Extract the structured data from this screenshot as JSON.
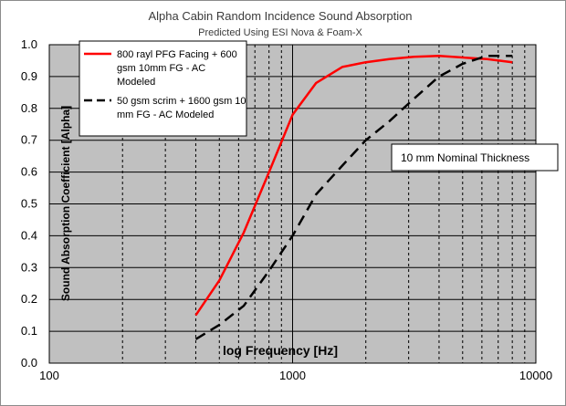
{
  "chart_data": {
    "type": "line",
    "title": "Alpha Cabin Random Incidence Sound Absorption",
    "subtitle": "Predicted Using ESI Nova & Foam-X",
    "xlabel": "log Frequency  [Hz]",
    "ylabel": "Sound Absorption Coefficient  [Alpha]",
    "x_scale": "log",
    "xlim": [
      100,
      10000
    ],
    "ylim": [
      0,
      1.0
    ],
    "x_ticks": [
      100,
      1000,
      10000
    ],
    "x_tick_labels": [
      "100",
      "1000",
      "10000"
    ],
    "y_ticks": [
      0,
      0.1,
      0.2,
      0.3,
      0.4,
      0.5,
      0.6,
      0.7,
      0.8,
      0.9,
      1.0
    ],
    "y_tick_labels": [
      "0.0",
      "0.1",
      "0.2",
      "0.3",
      "0.4",
      "0.5",
      "0.6",
      "0.7",
      "0.8",
      "0.9",
      "1.0"
    ],
    "grid": true,
    "legend_position": "top-left",
    "annotation": "10 mm Nominal Thickness",
    "series": [
      {
        "name": "800 rayl PFG Facing + 600 gsm 10mm FG - AC Modeled",
        "legend_lines": [
          "800 rayl PFG Facing + 600",
          "gsm 10mm FG - AC",
          "Modeled"
        ],
        "color": "#ff0000",
        "dash": "solid",
        "x": [
          400,
          500,
          630,
          800,
          1000,
          1250,
          1600,
          2000,
          2500,
          3150,
          4000,
          5000,
          6300,
          8000
        ],
        "y": [
          0.15,
          0.26,
          0.41,
          0.6,
          0.78,
          0.88,
          0.93,
          0.945,
          0.955,
          0.962,
          0.965,
          0.96,
          0.955,
          0.945
        ]
      },
      {
        "name": "50 gsm scrim + 1600 gsm 10 mm FG - AC Modeled",
        "legend_lines": [
          "50 gsm scrim + 1600 gsm 10",
          "mm FG - AC Modeled"
        ],
        "color": "#000000",
        "dash": "dashed",
        "x": [
          400,
          500,
          630,
          800,
          1000,
          1250,
          1600,
          2000,
          2500,
          3150,
          4000,
          5000,
          6300,
          8000
        ],
        "y": [
          0.075,
          0.12,
          0.18,
          0.29,
          0.4,
          0.53,
          0.62,
          0.7,
          0.76,
          0.83,
          0.9,
          0.94,
          0.965,
          0.965
        ]
      }
    ]
  }
}
